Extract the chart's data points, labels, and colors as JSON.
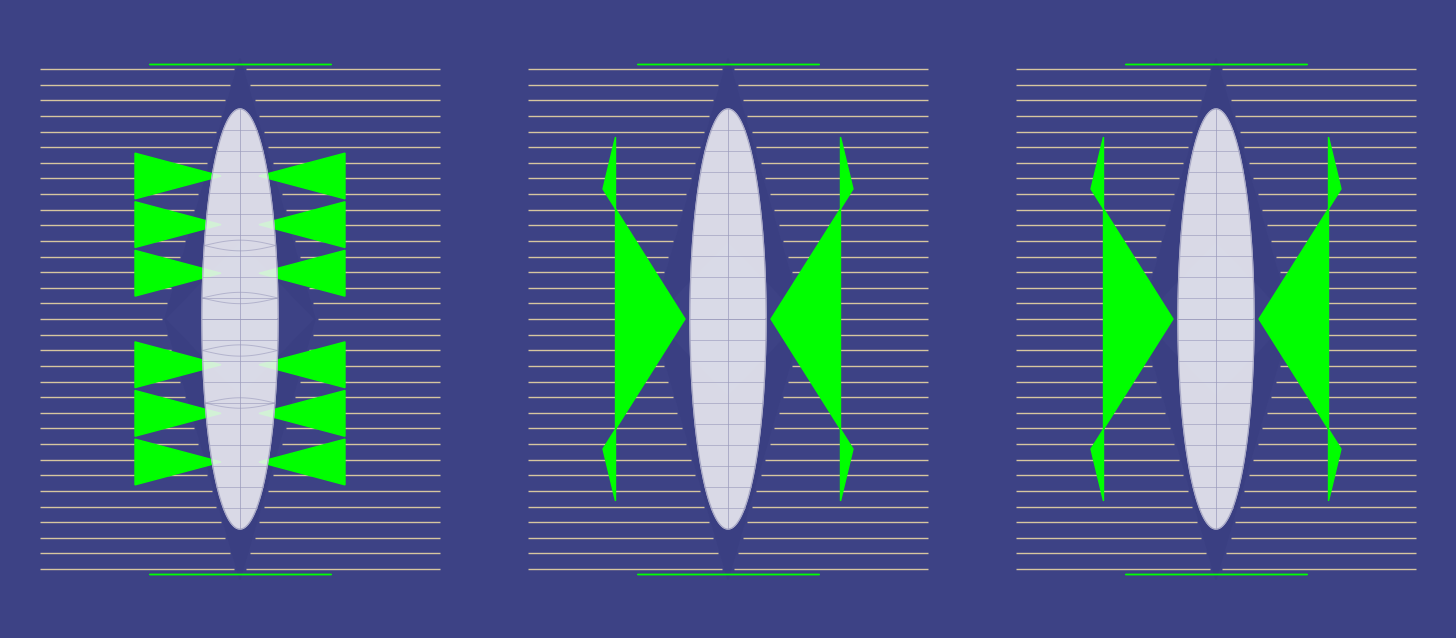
{
  "bg_color": "#3d4285",
  "lens_color": "#3a3f82",
  "lens_dark": "#2d3270",
  "green_color": "#00ff00",
  "beam_color": "#e8d5a3",
  "white_color": "#ffffff",
  "grid_color": "#9999bb",
  "fig_width": 14.56,
  "fig_height": 6.38,
  "dpi": 100
}
